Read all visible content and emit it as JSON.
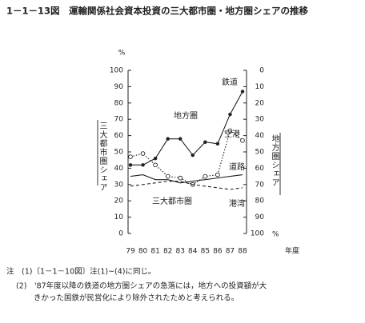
{
  "chart_data": {
    "type": "line",
    "title": "1－1－13図　運輸関係社会資本投資の三大都市圏・地方圏シェアの推移",
    "categories": [
      "79",
      "80",
      "81",
      "82",
      "83",
      "84",
      "85",
      "86",
      "87",
      "88"
    ],
    "x_unit": "年度",
    "y_label": "三大都市圏シェア",
    "y2_label": "地方圏シェア",
    "y_unit": "%",
    "y2_unit": "%",
    "ylim": [
      0,
      100
    ],
    "yticks": [
      0,
      10,
      20,
      30,
      40,
      50,
      60,
      70,
      80,
      90,
      100
    ],
    "y2lim": [
      100,
      0
    ],
    "y2ticks": [
      0,
      10,
      20,
      30,
      40,
      50,
      60,
      70,
      80,
      90,
      100
    ],
    "series": [
      {
        "name": "鉄道",
        "color": "#222222",
        "style": "solid",
        "marker": "dot",
        "values": [
          42,
          42,
          46,
          58,
          58,
          48,
          56,
          55,
          73,
          87
        ]
      },
      {
        "name": "空港",
        "color": "#222222",
        "style": "dotted",
        "marker": "circle",
        "values": [
          47,
          49,
          42,
          35,
          34,
          30,
          35,
          36,
          63,
          57
        ]
      },
      {
        "name": "道路",
        "color": "#222222",
        "style": "solid",
        "marker": "none",
        "values": [
          35,
          36,
          33,
          33,
          31,
          32,
          33,
          34,
          35,
          36
        ]
      },
      {
        "name": "港湾",
        "color": "#222222",
        "style": "dashed",
        "marker": "none",
        "values": [
          29,
          30,
          31,
          32,
          32,
          30,
          29,
          28,
          27,
          28
        ]
      }
    ],
    "annotations": [
      "地方圏",
      "三大都市圏"
    ],
    "notes": [
      "注　(1)〔1－1－10図〕注(1)~(4)に同じ。",
      "(2)　'87年度以降の鉄道の地方圏シェアの急落には，地方への投資額が大",
      "きかった国鉄が民営化により除外されたためと考えられる。"
    ]
  }
}
